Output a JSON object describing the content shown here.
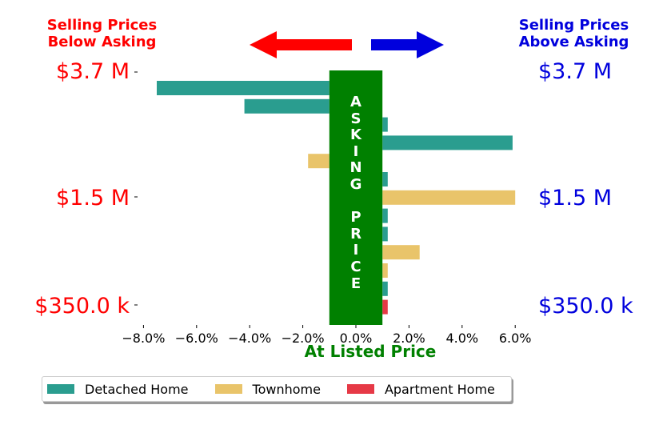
{
  "header": {
    "below_title": "Selling Prices\nBelow Asking",
    "above_title": "Selling Prices\nAbove Asking"
  },
  "colors": {
    "below": "#ff0000",
    "above": "#0000dd",
    "asking_band": "#008000",
    "detached": "#2a9d8f",
    "townhome": "#e9c46a",
    "apartment": "#e63946"
  },
  "price_labels": {
    "left": [
      "$3.7 M",
      "$1.5 M",
      "$350.0 k"
    ],
    "right": [
      "$3.7 M",
      "$1.5 M",
      "$350.0 k"
    ]
  },
  "asking_band_text": [
    "A",
    "S",
    "K",
    "I",
    "N",
    "G",
    " ",
    "P",
    "R",
    "I",
    "C",
    "E"
  ],
  "chart_data": {
    "type": "bar",
    "orientation": "horizontal",
    "xlabel": "At Listed Price",
    "x_ticks": [
      "−8.0%",
      "−6.0%",
      "−4.0%",
      "−2.0%",
      "0.0%",
      "2.0%",
      "4.0%",
      "6.0%"
    ],
    "x_tick_values": [
      -8,
      -6,
      -4,
      -2,
      0,
      2,
      4,
      6
    ],
    "xlim": [
      -8.2,
      6.8
    ],
    "asking_band_range": [
      -1,
      1
    ],
    "bars": [
      {
        "series": "Detached Home",
        "value": -7.5
      },
      {
        "series": "Detached Home",
        "value": -4.2
      },
      {
        "series": "Detached Home",
        "value": 1.2
      },
      {
        "series": "Detached Home",
        "value": 5.9
      },
      {
        "series": "Townhome",
        "value": -1.8
      },
      {
        "series": "Detached Home",
        "value": 1.2
      },
      {
        "series": "Townhome",
        "value": 6.0
      },
      {
        "series": "Detached Home",
        "value": 1.2
      },
      {
        "series": "Detached Home",
        "value": 1.2
      },
      {
        "series": "Townhome",
        "value": 2.4
      },
      {
        "series": "Townhome",
        "value": 1.2
      },
      {
        "series": "Detached Home",
        "value": 1.2
      },
      {
        "series": "Apartment Home",
        "value": 1.2
      }
    ],
    "legend": [
      "Detached Home",
      "Townhome",
      "Apartment Home"
    ],
    "legend_position": "bottom-left",
    "grid": false
  }
}
